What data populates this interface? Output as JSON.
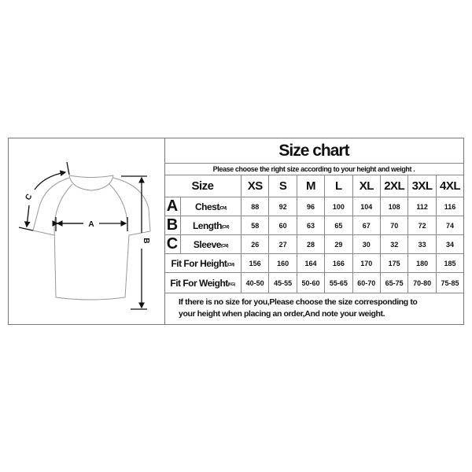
{
  "title": "Size chart",
  "subtitle": "Please choose the right size according to your height and weight .",
  "header": {
    "label": "Size",
    "sizes": [
      "XS",
      "S",
      "M",
      "L",
      "XL",
      "2XL",
      "3XL",
      "4XL"
    ]
  },
  "rows": [
    {
      "letter": "A",
      "label": "Chest",
      "unit": "(CM)",
      "values": [
        "88",
        "92",
        "96",
        "100",
        "104",
        "108",
        "112",
        "116"
      ]
    },
    {
      "letter": "B",
      "label": "Length",
      "unit": "(CM)",
      "values": [
        "58",
        "60",
        "63",
        "65",
        "67",
        "70",
        "72",
        "74"
      ]
    },
    {
      "letter": "C",
      "label": "Sleeve",
      "unit": "(CM)",
      "values": [
        "26",
        "27",
        "28",
        "29",
        "30",
        "32",
        "33",
        "34"
      ]
    },
    {
      "letter": "",
      "label": "Fit For Height",
      "unit": "(CM)",
      "values": [
        "156",
        "160",
        "164",
        "166",
        "170",
        "175",
        "180",
        "185"
      ]
    },
    {
      "letter": "",
      "label": "Fit For Weight",
      "unit": "(KG)",
      "values": [
        "40-50",
        "45-55",
        "50-60",
        "55-65",
        "60-70",
        "65-75",
        "70-80",
        "75-85"
      ]
    }
  ],
  "note_line1": "If there is no size for you,Please choose the size corresponding to",
  "note_line2": "your height when placing an order,And note your weight.",
  "diagram": {
    "a": "A",
    "b": "B",
    "c": "C"
  }
}
